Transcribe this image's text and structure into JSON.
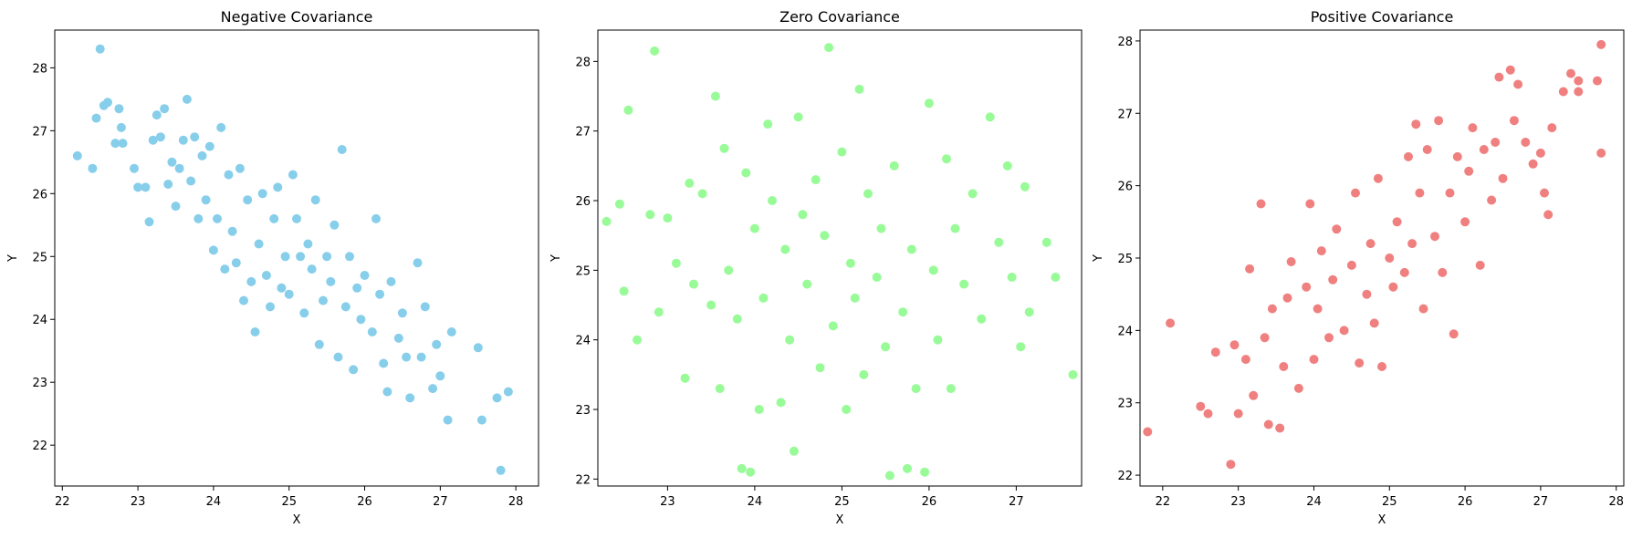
{
  "chart_data": [
    {
      "type": "scatter",
      "title": "Negative Covariance",
      "xlabel": "X",
      "ylabel": "Y",
      "xlim": [
        21.9,
        28.3
      ],
      "ylim": [
        21.35,
        28.6
      ],
      "xticks": [
        22,
        23,
        24,
        25,
        26,
        27,
        28
      ],
      "yticks": [
        22,
        23,
        24,
        25,
        26,
        27,
        28
      ],
      "color": "#87CEEB",
      "points": [
        [
          22.2,
          26.6
        ],
        [
          22.4,
          26.4
        ],
        [
          22.45,
          27.2
        ],
        [
          22.5,
          28.3
        ],
        [
          22.55,
          27.4
        ],
        [
          22.6,
          27.45
        ],
        [
          22.7,
          26.8
        ],
        [
          22.75,
          27.35
        ],
        [
          22.8,
          26.8
        ],
        [
          22.78,
          27.05
        ],
        [
          22.95,
          26.4
        ],
        [
          23.0,
          26.1
        ],
        [
          23.1,
          26.1
        ],
        [
          23.15,
          25.55
        ],
        [
          23.2,
          26.85
        ],
        [
          23.25,
          27.25
        ],
        [
          23.3,
          26.9
        ],
        [
          23.35,
          27.35
        ],
        [
          23.4,
          26.15
        ],
        [
          23.45,
          26.5
        ],
        [
          23.5,
          25.8
        ],
        [
          23.55,
          26.4
        ],
        [
          23.6,
          26.85
        ],
        [
          23.65,
          27.5
        ],
        [
          23.7,
          26.2
        ],
        [
          23.75,
          26.9
        ],
        [
          23.8,
          25.6
        ],
        [
          23.85,
          26.6
        ],
        [
          23.9,
          25.9
        ],
        [
          23.95,
          26.75
        ],
        [
          24.0,
          25.1
        ],
        [
          24.05,
          25.6
        ],
        [
          24.1,
          27.05
        ],
        [
          24.15,
          24.8
        ],
        [
          24.2,
          26.3
        ],
        [
          24.25,
          25.4
        ],
        [
          24.3,
          24.9
        ],
        [
          24.35,
          26.4
        ],
        [
          24.4,
          24.3
        ],
        [
          24.45,
          25.9
        ],
        [
          24.5,
          24.6
        ],
        [
          24.55,
          23.8
        ],
        [
          24.6,
          25.2
        ],
        [
          24.65,
          26.0
        ],
        [
          24.7,
          24.7
        ],
        [
          24.75,
          24.2
        ],
        [
          24.8,
          25.6
        ],
        [
          24.85,
          26.1
        ],
        [
          24.9,
          24.5
        ],
        [
          24.95,
          25.0
        ],
        [
          25.0,
          24.4
        ],
        [
          25.05,
          26.3
        ],
        [
          25.1,
          25.6
        ],
        [
          25.15,
          25.0
        ],
        [
          25.2,
          24.1
        ],
        [
          25.25,
          25.2
        ],
        [
          25.3,
          24.8
        ],
        [
          25.35,
          25.9
        ],
        [
          25.4,
          23.6
        ],
        [
          25.45,
          24.3
        ],
        [
          25.5,
          25.0
        ],
        [
          25.55,
          24.6
        ],
        [
          25.6,
          25.5
        ],
        [
          25.65,
          23.4
        ],
        [
          25.7,
          26.7
        ],
        [
          25.75,
          24.2
        ],
        [
          25.8,
          25.0
        ],
        [
          25.85,
          23.2
        ],
        [
          25.9,
          24.5
        ],
        [
          25.95,
          24.0
        ],
        [
          26.0,
          24.7
        ],
        [
          26.1,
          23.8
        ],
        [
          26.15,
          25.6
        ],
        [
          26.2,
          24.4
        ],
        [
          26.25,
          23.3
        ],
        [
          26.3,
          22.85
        ],
        [
          26.35,
          24.6
        ],
        [
          26.45,
          23.7
        ],
        [
          26.5,
          24.1
        ],
        [
          26.55,
          23.4
        ],
        [
          26.6,
          22.75
        ],
        [
          26.7,
          24.9
        ],
        [
          26.75,
          23.4
        ],
        [
          26.8,
          24.2
        ],
        [
          26.9,
          22.9
        ],
        [
          26.95,
          23.6
        ],
        [
          27.0,
          23.1
        ],
        [
          27.1,
          22.4
        ],
        [
          27.15,
          23.8
        ],
        [
          27.5,
          23.55
        ],
        [
          27.55,
          22.4
        ],
        [
          27.75,
          22.75
        ],
        [
          27.8,
          21.6
        ],
        [
          27.9,
          22.85
        ]
      ]
    },
    {
      "type": "scatter",
      "title": "Zero Covariance",
      "xlabel": "X",
      "ylabel": "Y",
      "xlim": [
        22.2,
        27.75
      ],
      "ylim": [
        21.9,
        28.45
      ],
      "xticks": [
        23,
        24,
        25,
        26,
        27
      ],
      "yticks": [
        22,
        23,
        24,
        25,
        26,
        27,
        28
      ],
      "color": "#98FB98",
      "points": [
        [
          22.3,
          25.7
        ],
        [
          22.45,
          25.95
        ],
        [
          22.5,
          24.7
        ],
        [
          22.55,
          27.3
        ],
        [
          22.65,
          24.0
        ],
        [
          22.8,
          25.8
        ],
        [
          22.85,
          28.15
        ],
        [
          22.9,
          24.4
        ],
        [
          23.0,
          25.75
        ],
        [
          23.1,
          25.1
        ],
        [
          23.2,
          23.45
        ],
        [
          23.25,
          26.25
        ],
        [
          23.3,
          24.8
        ],
        [
          23.4,
          26.1
        ],
        [
          23.5,
          24.5
        ],
        [
          23.55,
          27.5
        ],
        [
          23.6,
          23.3
        ],
        [
          23.65,
          26.75
        ],
        [
          23.7,
          25.0
        ],
        [
          23.8,
          24.3
        ],
        [
          23.85,
          22.15
        ],
        [
          23.9,
          26.4
        ],
        [
          23.95,
          22.1
        ],
        [
          24.0,
          25.6
        ],
        [
          24.05,
          23.0
        ],
        [
          24.1,
          24.6
        ],
        [
          24.15,
          27.1
        ],
        [
          24.2,
          26.0
        ],
        [
          24.3,
          23.1
        ],
        [
          24.35,
          25.3
        ],
        [
          24.4,
          24.0
        ],
        [
          24.45,
          22.4
        ],
        [
          24.5,
          27.2
        ],
        [
          24.55,
          25.8
        ],
        [
          24.6,
          24.8
        ],
        [
          24.7,
          26.3
        ],
        [
          24.75,
          23.6
        ],
        [
          24.8,
          25.5
        ],
        [
          24.85,
          28.2
        ],
        [
          24.9,
          24.2
        ],
        [
          25.0,
          26.7
        ],
        [
          25.05,
          23.0
        ],
        [
          25.1,
          25.1
        ],
        [
          25.15,
          24.6
        ],
        [
          25.2,
          27.6
        ],
        [
          25.25,
          23.5
        ],
        [
          25.3,
          26.1
        ],
        [
          25.4,
          24.9
        ],
        [
          25.45,
          25.6
        ],
        [
          25.5,
          23.9
        ],
        [
          25.55,
          22.05
        ],
        [
          25.6,
          26.5
        ],
        [
          25.7,
          24.4
        ],
        [
          25.75,
          22.15
        ],
        [
          25.8,
          25.3
        ],
        [
          25.85,
          23.3
        ],
        [
          25.95,
          22.1
        ],
        [
          26.0,
          27.4
        ],
        [
          26.05,
          25.0
        ],
        [
          26.1,
          24.0
        ],
        [
          26.2,
          26.6
        ],
        [
          26.25,
          23.3
        ],
        [
          26.3,
          25.6
        ],
        [
          26.4,
          24.8
        ],
        [
          26.5,
          26.1
        ],
        [
          26.6,
          24.3
        ],
        [
          26.7,
          27.2
        ],
        [
          26.8,
          25.4
        ],
        [
          26.9,
          26.5
        ],
        [
          26.95,
          24.9
        ],
        [
          27.05,
          23.9
        ],
        [
          27.1,
          26.2
        ],
        [
          27.15,
          24.4
        ],
        [
          27.35,
          25.4
        ],
        [
          27.45,
          24.9
        ],
        [
          27.65,
          23.5
        ]
      ]
    },
    {
      "type": "scatter",
      "title": "Positive Covariance",
      "xlabel": "X",
      "ylabel": "Y",
      "xlim": [
        21.7,
        28.1
      ],
      "ylim": [
        21.85,
        28.15
      ],
      "xticks": [
        22,
        23,
        24,
        25,
        26,
        27,
        28
      ],
      "yticks": [
        22,
        23,
        24,
        25,
        26,
        27,
        28
      ],
      "color": "#F08080",
      "points": [
        [
          21.8,
          22.6
        ],
        [
          22.1,
          24.1
        ],
        [
          22.5,
          22.95
        ],
        [
          22.6,
          22.85
        ],
        [
          22.7,
          23.7
        ],
        [
          22.9,
          22.15
        ],
        [
          22.95,
          23.8
        ],
        [
          23.0,
          22.85
        ],
        [
          23.1,
          23.6
        ],
        [
          23.15,
          24.85
        ],
        [
          23.2,
          23.1
        ],
        [
          23.3,
          25.75
        ],
        [
          23.35,
          23.9
        ],
        [
          23.4,
          22.7
        ],
        [
          23.45,
          24.3
        ],
        [
          23.55,
          22.65
        ],
        [
          23.6,
          23.5
        ],
        [
          23.65,
          24.45
        ],
        [
          23.7,
          24.95
        ],
        [
          23.8,
          23.2
        ],
        [
          23.9,
          24.6
        ],
        [
          23.95,
          25.75
        ],
        [
          24.0,
          23.6
        ],
        [
          24.05,
          24.3
        ],
        [
          24.1,
          25.1
        ],
        [
          24.2,
          23.9
        ],
        [
          24.25,
          24.7
        ],
        [
          24.3,
          25.4
        ],
        [
          24.4,
          24.0
        ],
        [
          24.5,
          24.9
        ],
        [
          24.55,
          25.9
        ],
        [
          24.6,
          23.55
        ],
        [
          24.7,
          24.5
        ],
        [
          24.75,
          25.2
        ],
        [
          24.8,
          24.1
        ],
        [
          24.85,
          26.1
        ],
        [
          24.9,
          23.5
        ],
        [
          25.0,
          25.0
        ],
        [
          25.05,
          24.6
        ],
        [
          25.1,
          25.5
        ],
        [
          25.2,
          24.8
        ],
        [
          25.25,
          26.4
        ],
        [
          25.3,
          25.2
        ],
        [
          25.35,
          26.85
        ],
        [
          25.4,
          25.9
        ],
        [
          25.45,
          24.3
        ],
        [
          25.5,
          26.5
        ],
        [
          25.6,
          25.3
        ],
        [
          25.65,
          26.9
        ],
        [
          25.7,
          24.8
        ],
        [
          25.8,
          25.9
        ],
        [
          25.85,
          23.95
        ],
        [
          25.9,
          26.4
        ],
        [
          26.0,
          25.5
        ],
        [
          26.05,
          26.2
        ],
        [
          26.1,
          26.8
        ],
        [
          26.2,
          24.9
        ],
        [
          26.25,
          26.5
        ],
        [
          26.35,
          25.8
        ],
        [
          26.4,
          26.6
        ],
        [
          26.45,
          27.5
        ],
        [
          26.5,
          26.1
        ],
        [
          26.6,
          27.6
        ],
        [
          26.65,
          26.9
        ],
        [
          26.7,
          27.4
        ],
        [
          26.8,
          26.6
        ],
        [
          26.9,
          26.3
        ],
        [
          27.0,
          26.45
        ],
        [
          27.05,
          25.9
        ],
        [
          27.1,
          25.6
        ],
        [
          27.15,
          26.8
        ],
        [
          27.3,
          27.3
        ],
        [
          27.4,
          27.55
        ],
        [
          27.5,
          27.3
        ],
        [
          27.5,
          27.45
        ],
        [
          27.75,
          27.45
        ],
        [
          27.8,
          26.45
        ],
        [
          27.8,
          27.95
        ]
      ]
    }
  ]
}
